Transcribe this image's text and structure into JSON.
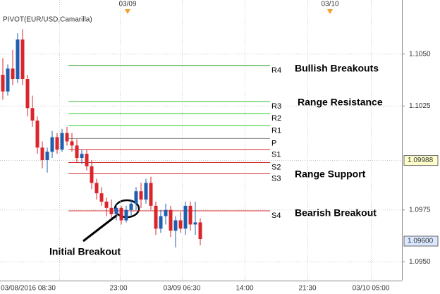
{
  "chart_data": {
    "type": "candlestick",
    "title": "PIVOT(EUR/USD,Camarilla)",
    "up_color": "#1f5fb0",
    "down_color": "#d9252b",
    "ylim": [
      1.0941,
      1.1076
    ],
    "yticks": [
      {
        "value": 1.105,
        "label": "1.1050"
      },
      {
        "value": 1.1025,
        "label": "1.1025"
      },
      {
        "value": 1.0975,
        "label": "1.0975"
      },
      {
        "value": 1.095,
        "label": "1.0950"
      }
    ],
    "price_markers": [
      {
        "value": 1.09988,
        "color": "#ffffcc"
      },
      {
        "value": 1.096,
        "label": "1.09600",
        "color": "#dbe8ff"
      }
    ],
    "x_labels": [
      "03/08/2016 08:30",
      "23:00",
      "03/09 06:30",
      "14:00",
      "21:30",
      "03/10 05:00"
    ],
    "date_markers": [
      "03/09",
      "03/10"
    ],
    "open": [
      1.104,
      1.1032,
      1.1043,
      1.1038,
      1.1057,
      1.1038,
      1.1024,
      1.1018,
      1.1005,
      1.0999,
      1.1003,
      1.101,
      1.1004,
      1.1012,
      1.1008,
      1.1006,
      1.1,
      1.1002,
      1.0996,
      1.0988,
      1.0983,
      1.0979,
      1.0976,
      1.0973,
      1.0976,
      1.097,
      1.0975,
      1.0978,
      1.0984,
      1.098,
      1.0988,
      1.0977,
      1.0966,
      1.0972,
      1.0975,
      1.0965,
      1.097,
      1.0966,
      1.0977,
      1.0968,
      1.0969
    ],
    "high": [
      1.1048,
      1.1045,
      1.1052,
      1.106,
      1.1062,
      1.104,
      1.103,
      1.102,
      1.1008,
      1.1005,
      1.1013,
      1.1012,
      1.1014,
      1.1015,
      1.1012,
      1.1009,
      1.1004,
      1.1004,
      1.0999,
      1.099,
      1.0986,
      1.0981,
      1.098,
      1.0978,
      1.0977,
      1.0977,
      1.098,
      1.0986,
      1.0988,
      1.099,
      1.0991,
      1.0979,
      1.0975,
      1.0978,
      1.0977,
      1.0972,
      1.0974,
      1.0979,
      1.0979,
      1.0979,
      1.0971
    ],
    "low": [
      1.1028,
      1.103,
      1.1035,
      1.1036,
      1.1035,
      1.102,
      1.1015,
      1.1002,
      1.0995,
      1.0993,
      1.1,
      1.1002,
      1.1003,
      1.1006,
      1.1003,
      1.0998,
      1.0997,
      1.0994,
      1.0985,
      1.098,
      1.0977,
      1.0972,
      1.0971,
      1.097,
      1.0968,
      1.0969,
      1.0972,
      1.0975,
      1.0976,
      1.0978,
      1.0975,
      1.0963,
      1.0964,
      1.0968,
      1.0962,
      1.0957,
      1.0964,
      1.0963,
      1.0965,
      1.0963,
      1.0958
    ],
    "close": [
      1.1032,
      1.1043,
      1.1038,
      1.1057,
      1.1038,
      1.1024,
      1.1018,
      1.1005,
      1.0999,
      1.1003,
      1.101,
      1.1004,
      1.1012,
      1.1008,
      1.1006,
      1.1,
      1.1002,
      1.0996,
      1.0988,
      1.0983,
      1.0979,
      1.0976,
      1.0973,
      1.0976,
      1.097,
      1.0975,
      1.0978,
      1.0984,
      1.098,
      1.0988,
      1.0977,
      1.0966,
      1.0972,
      1.0975,
      1.0965,
      1.097,
      1.0966,
      1.0977,
      1.0968,
      1.0969,
      1.0961
    ],
    "levels": [
      {
        "label": "R4",
        "value": 1.10445,
        "color": "#1a9a1a"
      },
      {
        "label": "R3",
        "value": 1.10271,
        "color": "#33bb33"
      },
      {
        "label": "R2",
        "value": 1.10213,
        "color": "#33cc33"
      },
      {
        "label": "R1",
        "value": 1.10155,
        "color": "#33cc33"
      },
      {
        "label": "P",
        "value": 1.10094,
        "color": "#888888"
      },
      {
        "label": "S1",
        "value": 1.10039,
        "color": "#d43030"
      },
      {
        "label": "S2",
        "value": 1.09978,
        "color": "#d43030"
      },
      {
        "label": "S3",
        "value": 1.09924,
        "color": "#d43030"
      },
      {
        "label": "S4",
        "value": 1.09746,
        "color": "#d43030"
      }
    ],
    "annotations": [
      "Bullish Breakouts",
      "Range Resistance",
      "Range Support",
      "Bearish Breakout",
      "Initial Breakout"
    ]
  }
}
